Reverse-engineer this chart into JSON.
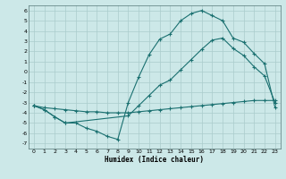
{
  "title": "",
  "xlabel": "Humidex (Indice chaleur)",
  "bg_color": "#cce8e8",
  "grid_color": "#aacccc",
  "line_color": "#1a7070",
  "xlim": [
    -0.5,
    23.5
  ],
  "ylim": [
    -7.5,
    6.5
  ],
  "xticks": [
    0,
    1,
    2,
    3,
    4,
    5,
    6,
    7,
    8,
    9,
    10,
    11,
    12,
    13,
    14,
    15,
    16,
    17,
    18,
    19,
    20,
    21,
    22,
    23
  ],
  "yticks": [
    -7,
    -6,
    -5,
    -4,
    -3,
    -2,
    -1,
    0,
    1,
    2,
    3,
    4,
    5,
    6
  ],
  "curve1_x": [
    0,
    1,
    2,
    3,
    4,
    5,
    6,
    7,
    8,
    9,
    10,
    11,
    12,
    13,
    14,
    15,
    16,
    17,
    18,
    19,
    20,
    21,
    22,
    23
  ],
  "curve1_y": [
    -3.3,
    -3.7,
    -4.4,
    -5.0,
    -5.0,
    -5.5,
    -5.8,
    -6.3,
    -6.6,
    -3.0,
    -0.5,
    1.7,
    3.2,
    3.7,
    5.0,
    5.7,
    6.0,
    5.5,
    5.0,
    3.3,
    2.9,
    1.8,
    0.8,
    -3.5
  ],
  "curve2_x": [
    0,
    1,
    2,
    3,
    9,
    10,
    11,
    12,
    13,
    14,
    15,
    16,
    17,
    18,
    19,
    20,
    21,
    22,
    23
  ],
  "curve2_y": [
    -3.3,
    -3.7,
    -4.4,
    -5.0,
    -4.3,
    -3.3,
    -2.3,
    -1.3,
    -0.8,
    0.2,
    1.2,
    2.2,
    3.1,
    3.3,
    2.3,
    1.6,
    0.5,
    -0.4,
    -3.0
  ],
  "curve3_x": [
    0,
    1,
    2,
    3,
    4,
    5,
    6,
    7,
    8,
    9,
    10,
    11,
    12,
    13,
    14,
    15,
    16,
    17,
    18,
    19,
    20,
    21,
    22,
    23
  ],
  "curve3_y": [
    -3.3,
    -3.5,
    -3.6,
    -3.7,
    -3.8,
    -3.9,
    -3.9,
    -4.0,
    -4.0,
    -4.0,
    -3.9,
    -3.8,
    -3.7,
    -3.6,
    -3.5,
    -3.4,
    -3.3,
    -3.2,
    -3.1,
    -3.0,
    -2.9,
    -2.8,
    -2.8,
    -2.8
  ],
  "marker": "+"
}
